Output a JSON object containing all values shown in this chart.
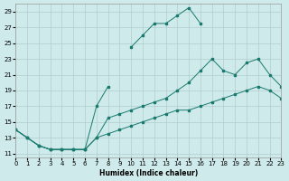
{
  "xlabel": "Humidex (Indice chaleur)",
  "x_values": [
    0,
    1,
    2,
    3,
    4,
    5,
    6,
    7,
    8,
    9,
    10,
    11,
    12,
    13,
    14,
    15,
    16,
    17,
    18,
    19,
    20,
    21,
    22,
    23
  ],
  "line_top": [
    14,
    13,
    12,
    11.5,
    11.5,
    11.5,
    11.5,
    17,
    19.5,
    null,
    24.5,
    26,
    27.5,
    27.5,
    28.5,
    29.5,
    27.5,
    null,
    null,
    null,
    null,
    null,
    null,
    null
  ],
  "line_mid": [
    14,
    13,
    12,
    11.5,
    11.5,
    11.5,
    11.5,
    13,
    15.5,
    16,
    16.5,
    17,
    17.5,
    18,
    19,
    20,
    21.5,
    23,
    21.5,
    21,
    22.5,
    23,
    21,
    19.5
  ],
  "line_bot": [
    14,
    13,
    12,
    11.5,
    11.5,
    11.5,
    11.5,
    13,
    13.5,
    14,
    14.5,
    15,
    15.5,
    16,
    16.5,
    16.5,
    17,
    17.5,
    18,
    18.5,
    19,
    19.5,
    19,
    18
  ],
  "line_color": "#1a7a6e",
  "bg_color": "#ceeaea",
  "grid_color": "#b0cccc",
  "xlim": [
    0,
    23
  ],
  "ylim": [
    10.5,
    30
  ],
  "yticks": [
    11,
    13,
    15,
    17,
    19,
    21,
    23,
    25,
    27,
    29
  ],
  "xticks": [
    0,
    1,
    2,
    3,
    4,
    5,
    6,
    7,
    8,
    9,
    10,
    11,
    12,
    13,
    14,
    15,
    16,
    17,
    18,
    19,
    20,
    21,
    22,
    23
  ]
}
